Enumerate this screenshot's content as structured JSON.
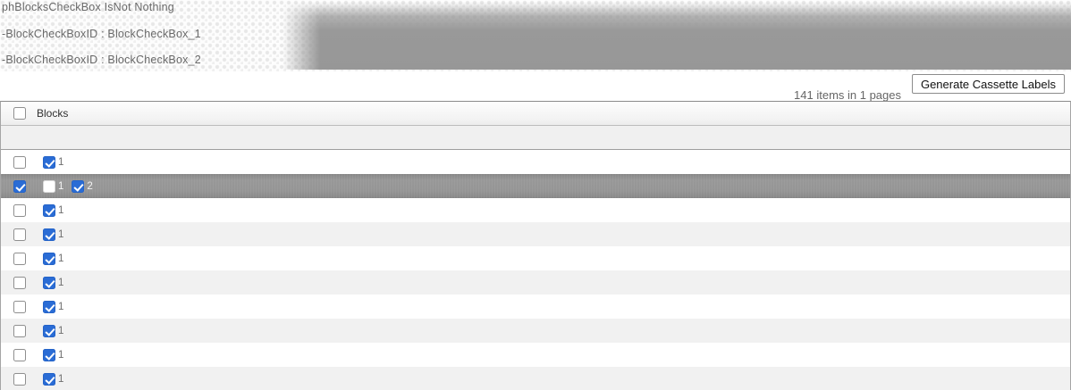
{
  "debug": {
    "lines": [
      "phBlocksCheckBox IsNot Nothing",
      "-BlockCheckBoxID : BlockCheckBox_1",
      "-BlockCheckBoxID : BlockCheckBox_2"
    ]
  },
  "toolbar": {
    "items_summary": "141 items in 1 pages",
    "generate_button_label": "Generate Cassette Labels"
  },
  "grid": {
    "header": {
      "label": "Blocks",
      "select_all_checked": false
    },
    "rows": [
      {
        "selected": false,
        "row_checkbox_checked": false,
        "blocks": [
          {
            "checked": true,
            "label": "1"
          }
        ]
      },
      {
        "selected": true,
        "row_checkbox_checked": true,
        "blocks": [
          {
            "checked": false,
            "label": "1"
          },
          {
            "checked": true,
            "label": "2"
          }
        ]
      },
      {
        "selected": false,
        "row_checkbox_checked": false,
        "blocks": [
          {
            "checked": true,
            "label": "1"
          }
        ]
      },
      {
        "selected": false,
        "row_checkbox_checked": false,
        "blocks": [
          {
            "checked": true,
            "label": "1"
          }
        ]
      },
      {
        "selected": false,
        "row_checkbox_checked": false,
        "blocks": [
          {
            "checked": true,
            "label": "1"
          }
        ]
      },
      {
        "selected": false,
        "row_checkbox_checked": false,
        "blocks": [
          {
            "checked": true,
            "label": "1"
          }
        ]
      },
      {
        "selected": false,
        "row_checkbox_checked": false,
        "blocks": [
          {
            "checked": true,
            "label": "1"
          }
        ]
      },
      {
        "selected": false,
        "row_checkbox_checked": false,
        "blocks": [
          {
            "checked": true,
            "label": "1"
          }
        ]
      },
      {
        "selected": false,
        "row_checkbox_checked": false,
        "blocks": [
          {
            "checked": true,
            "label": "1"
          }
        ]
      },
      {
        "selected": false,
        "row_checkbox_checked": false,
        "blocks": [
          {
            "checked": true,
            "label": "1"
          }
        ]
      }
    ]
  },
  "colors": {
    "accent_blue": "#2a6cd5",
    "selected_row_gray": "#949494",
    "alt_row_gray": "#f1f1f1"
  }
}
